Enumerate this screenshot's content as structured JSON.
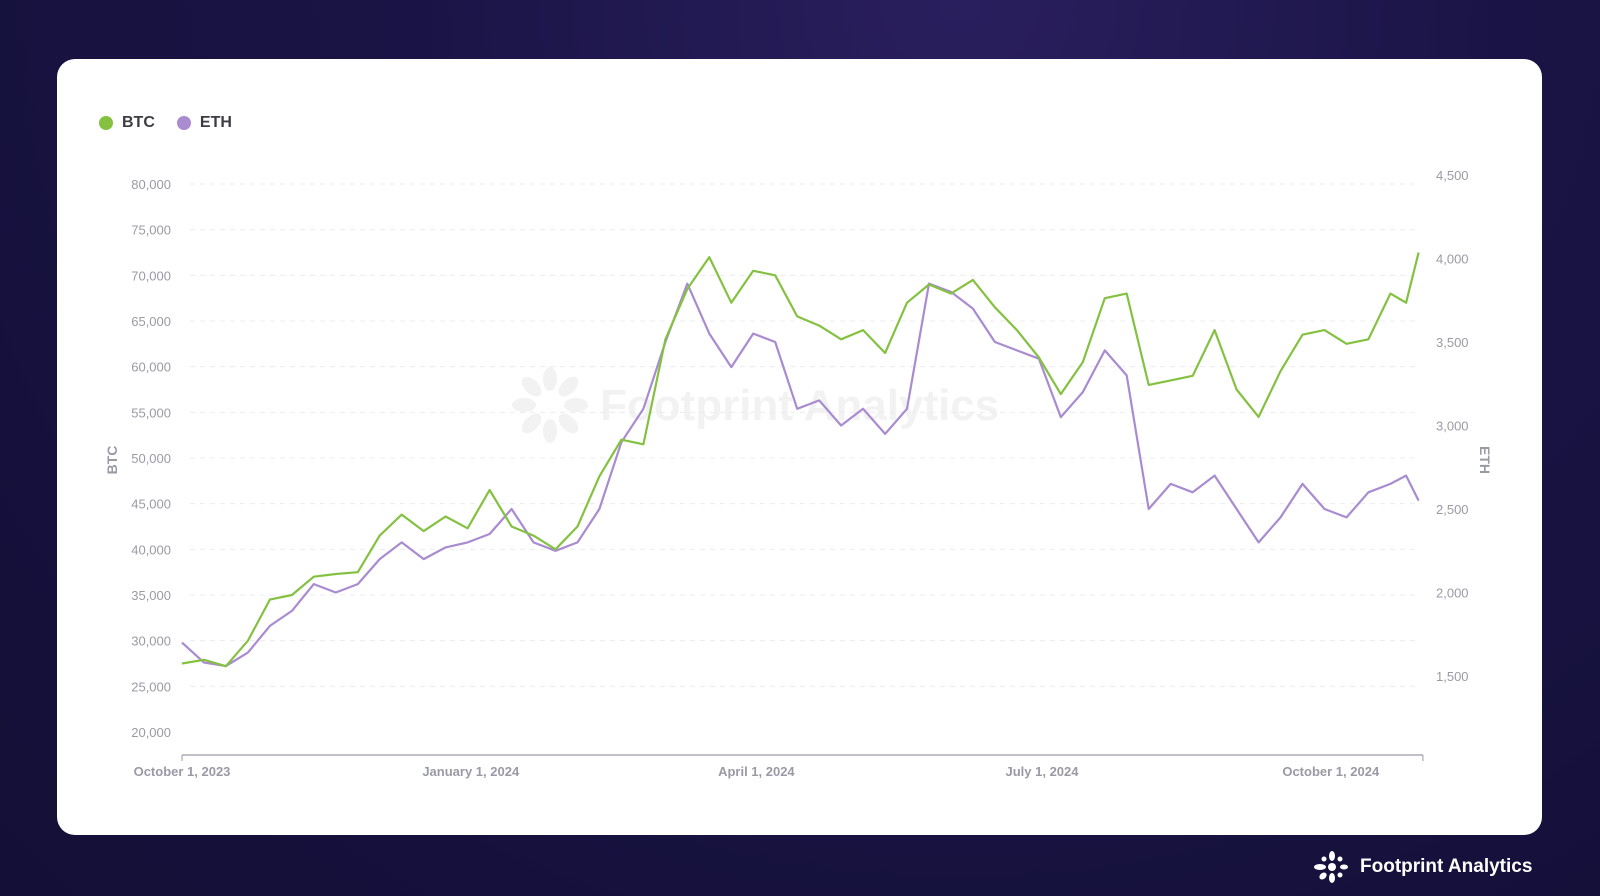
{
  "legend": [
    {
      "label": "BTC",
      "color": "#84c141"
    },
    {
      "label": "ETH",
      "color": "#a98bd0"
    }
  ],
  "watermark": "Footprint Analytics",
  "brand": {
    "name": "Footprint Analytics",
    "icon": "footprint-logo-icon"
  },
  "chart_data": {
    "type": "line",
    "title": "",
    "xlabel": "",
    "ylabel": "BTC",
    "y2label": "ETH",
    "ylim": [
      20000,
      80000
    ],
    "y2lim": [
      1500,
      4500
    ],
    "yticks": [
      "20,000",
      "25,000",
      "30,000",
      "35,000",
      "40,000",
      "45,000",
      "50,000",
      "55,000",
      "60,000",
      "65,000",
      "70,000",
      "75,000",
      "80,000"
    ],
    "y2ticks": [
      "1,500",
      "2,000",
      "2,500",
      "3,000",
      "3,500",
      "4,000",
      "4,500"
    ],
    "xticks": [
      {
        "date": "2023-10-01",
        "label": "October 1, 2023"
      },
      {
        "date": "2024-01-01",
        "label": "January 1, 2024"
      },
      {
        "date": "2024-04-01",
        "label": "April 1, 2024"
      },
      {
        "date": "2024-07-01",
        "label": "July 1, 2024"
      },
      {
        "date": "2024-10-01",
        "label": "October 1, 2024"
      }
    ],
    "xrange": [
      "2023-10-01",
      "2024-10-31"
    ],
    "grid": true,
    "legend_position": "top-left",
    "x": [
      "2023-10-01",
      "2023-10-08",
      "2023-10-15",
      "2023-10-22",
      "2023-10-29",
      "2023-11-05",
      "2023-11-12",
      "2023-11-19",
      "2023-11-26",
      "2023-12-03",
      "2023-12-10",
      "2023-12-17",
      "2023-12-24",
      "2023-12-31",
      "2024-01-07",
      "2024-01-14",
      "2024-01-21",
      "2024-01-28",
      "2024-02-04",
      "2024-02-11",
      "2024-02-18",
      "2024-02-25",
      "2024-03-03",
      "2024-03-10",
      "2024-03-17",
      "2024-03-24",
      "2024-03-31",
      "2024-04-07",
      "2024-04-14",
      "2024-04-21",
      "2024-04-28",
      "2024-05-05",
      "2024-05-12",
      "2024-05-19",
      "2024-05-26",
      "2024-06-02",
      "2024-06-09",
      "2024-06-16",
      "2024-06-23",
      "2024-06-30",
      "2024-07-07",
      "2024-07-14",
      "2024-07-21",
      "2024-07-28",
      "2024-08-04",
      "2024-08-11",
      "2024-08-18",
      "2024-08-25",
      "2024-09-01",
      "2024-09-08",
      "2024-09-15",
      "2024-09-22",
      "2024-09-29",
      "2024-10-06",
      "2024-10-13",
      "2024-10-20",
      "2024-10-25",
      "2024-10-29"
    ],
    "series": [
      {
        "name": "BTC",
        "axis": "left",
        "color": "#84c141",
        "values": [
          27500,
          27900,
          27200,
          30000,
          34500,
          35000,
          37000,
          37300,
          37500,
          41500,
          43800,
          42000,
          43600,
          42300,
          46500,
          42500,
          41500,
          40000,
          42500,
          48000,
          52000,
          51500,
          63000,
          68500,
          72000,
          67000,
          70500,
          70000,
          65500,
          64500,
          63000,
          64000,
          61500,
          67000,
          69000,
          68000,
          69500,
          66500,
          64000,
          61000,
          57000,
          60500,
          67500,
          68000,
          58000,
          58500,
          59000,
          64000,
          57500,
          54500,
          59500,
          63500,
          64000,
          62500,
          63000,
          68000,
          67000,
          72500
        ]
      },
      {
        "name": "ETH",
        "axis": "right",
        "color": "#a98bd0",
        "values": [
          1700,
          1580,
          1560,
          1640,
          1800,
          1890,
          2050,
          2000,
          2050,
          2200,
          2300,
          2200,
          2270,
          2300,
          2350,
          2500,
          2300,
          2250,
          2300,
          2500,
          2900,
          3100,
          3500,
          3850,
          3550,
          3350,
          3550,
          3500,
          3100,
          3150,
          3000,
          3100,
          2950,
          3100,
          3850,
          3800,
          3700,
          3500,
          3450,
          3400,
          3050,
          3200,
          3450,
          3300,
          2500,
          2650,
          2600,
          2700,
          2500,
          2300,
          2450,
          2650,
          2500,
          2450,
          2600,
          2650,
          2700,
          2550
        ]
      }
    ]
  }
}
